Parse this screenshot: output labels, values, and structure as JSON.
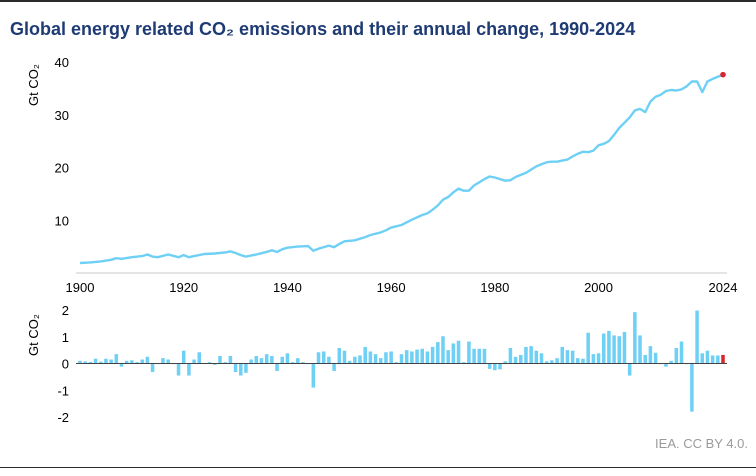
{
  "title": "Global energy related CO₂ emissions and their annual change, 1990-2024",
  "credit": "IEA. CC BY 4.0.",
  "colors": {
    "line": "#6fd0f5",
    "bar": "#6fd0f5",
    "highlight": "#d9262c",
    "title": "#1f3b74"
  },
  "chart_data": [
    {
      "type": "line",
      "ylabel": "Gt CO₂",
      "xlim": [
        1900,
        2024
      ],
      "ylim": [
        0,
        40
      ],
      "x_ticks": [
        1900,
        1920,
        1940,
        1960,
        1980,
        2000,
        2024
      ],
      "y_ticks": [
        10,
        20,
        30,
        40
      ],
      "grid": false,
      "points": [
        [
          1900,
          1.9
        ],
        [
          1902,
          2.0
        ],
        [
          1904,
          2.2
        ],
        [
          1906,
          2.5
        ],
        [
          1907,
          2.8
        ],
        [
          1908,
          2.7
        ],
        [
          1910,
          3.0
        ],
        [
          1912,
          3.2
        ],
        [
          1913,
          3.5
        ],
        [
          1914,
          3.1
        ],
        [
          1915,
          3.0
        ],
        [
          1917,
          3.5
        ],
        [
          1919,
          3.0
        ],
        [
          1920,
          3.4
        ],
        [
          1921,
          3.0
        ],
        [
          1922,
          3.2
        ],
        [
          1924,
          3.6
        ],
        [
          1926,
          3.7
        ],
        [
          1928,
          3.9
        ],
        [
          1929,
          4.1
        ],
        [
          1930,
          3.8
        ],
        [
          1931,
          3.4
        ],
        [
          1932,
          3.1
        ],
        [
          1934,
          3.5
        ],
        [
          1936,
          4.0
        ],
        [
          1937,
          4.3
        ],
        [
          1938,
          4.0
        ],
        [
          1939,
          4.5
        ],
        [
          1940,
          4.8
        ],
        [
          1942,
          5.0
        ],
        [
          1944,
          5.1
        ],
        [
          1945,
          4.2
        ],
        [
          1946,
          4.6
        ],
        [
          1948,
          5.2
        ],
        [
          1949,
          4.9
        ],
        [
          1950,
          5.5
        ],
        [
          1951,
          6.0
        ],
        [
          1953,
          6.2
        ],
        [
          1955,
          6.8
        ],
        [
          1956,
          7.2
        ],
        [
          1958,
          7.7
        ],
        [
          1959,
          8.1
        ],
        [
          1960,
          8.6
        ],
        [
          1962,
          9.1
        ],
        [
          1964,
          10.1
        ],
        [
          1966,
          11.0
        ],
        [
          1967,
          11.3
        ],
        [
          1968,
          12.0
        ],
        [
          1969,
          12.8
        ],
        [
          1970,
          13.9
        ],
        [
          1971,
          14.4
        ],
        [
          1972,
          15.3
        ],
        [
          1973,
          16.0
        ],
        [
          1974,
          15.6
        ],
        [
          1975,
          15.6
        ],
        [
          1976,
          16.6
        ],
        [
          1977,
          17.2
        ],
        [
          1978,
          17.8
        ],
        [
          1979,
          18.3
        ],
        [
          1980,
          18.1
        ],
        [
          1981,
          17.8
        ],
        [
          1982,
          17.5
        ],
        [
          1983,
          17.6
        ],
        [
          1984,
          18.2
        ],
        [
          1985,
          18.6
        ],
        [
          1986,
          19.0
        ],
        [
          1987,
          19.6
        ],
        [
          1988,
          20.2
        ],
        [
          1989,
          20.6
        ],
        [
          1990,
          21.0
        ],
        [
          1991,
          21.1
        ],
        [
          1992,
          21.1
        ],
        [
          1993,
          21.3
        ],
        [
          1994,
          21.5
        ],
        [
          1995,
          22.1
        ],
        [
          1996,
          22.6
        ],
        [
          1997,
          23.0
        ],
        [
          1998,
          22.9
        ],
        [
          1999,
          23.2
        ],
        [
          2000,
          24.2
        ],
        [
          2001,
          24.5
        ],
        [
          2002,
          25.0
        ],
        [
          2003,
          26.2
        ],
        [
          2004,
          27.5
        ],
        [
          2005,
          28.5
        ],
        [
          2006,
          29.5
        ],
        [
          2007,
          30.8
        ],
        [
          2008,
          31.1
        ],
        [
          2009,
          30.5
        ],
        [
          2010,
          32.5
        ],
        [
          2011,
          33.4
        ],
        [
          2012,
          33.8
        ],
        [
          2013,
          34.5
        ],
        [
          2014,
          34.7
        ],
        [
          2015,
          34.6
        ],
        [
          2016,
          34.8
        ],
        [
          2017,
          35.4
        ],
        [
          2018,
          36.3
        ],
        [
          2019,
          36.3
        ],
        [
          2020,
          34.3
        ],
        [
          2021,
          36.3
        ],
        [
          2022,
          36.8
        ],
        [
          2023,
          37.2
        ],
        [
          2024,
          37.6
        ]
      ],
      "highlight": [
        2024,
        37.6
      ]
    },
    {
      "type": "bar",
      "ylabel": "Gt CO₂",
      "xlim": [
        1900,
        2024
      ],
      "ylim": [
        -2,
        2
      ],
      "y_ticks": [
        2,
        1,
        0,
        -1,
        -2
      ],
      "grid": false,
      "start_year": 1900,
      "values": [
        0.1,
        0.08,
        0.06,
        0.18,
        0.07,
        0.18,
        0.15,
        0.35,
        -0.12,
        0.1,
        0.12,
        0.05,
        0.15,
        0.25,
        -0.32,
        -0.02,
        0.2,
        0.15,
        0.0,
        -0.45,
        0.48,
        -0.45,
        0.15,
        0.42,
        0.02,
        0.05,
        -0.05,
        0.28,
        0.05,
        0.28,
        -0.32,
        -0.45,
        -0.35,
        0.15,
        0.28,
        0.2,
        0.35,
        0.28,
        -0.28,
        0.25,
        0.38,
        0.05,
        0.2,
        0.05,
        0.0,
        -0.9,
        0.42,
        0.45,
        0.25,
        -0.28,
        0.58,
        0.48,
        0.1,
        0.25,
        0.3,
        0.62,
        0.45,
        0.35,
        0.2,
        0.42,
        0.45,
        0.05,
        0.35,
        0.5,
        0.45,
        0.52,
        0.55,
        0.45,
        0.62,
        0.8,
        1.02,
        0.5,
        0.75,
        0.85,
        0.05,
        0.82,
        0.55,
        0.55,
        0.55,
        -0.2,
        -0.25,
        -0.22,
        0.08,
        0.58,
        0.25,
        0.32,
        0.62,
        0.65,
        0.48,
        0.38,
        0.08,
        0.12,
        0.2,
        0.62,
        0.5,
        0.48,
        0.2,
        0.18,
        1.15,
        0.35,
        0.38,
        1.12,
        1.22,
        1.05,
        1.02,
        1.18,
        -0.45,
        1.92,
        1.05,
        0.32,
        0.65,
        0.4,
        -0.02,
        -0.12,
        0.1,
        0.58,
        0.82,
        0.0,
        -1.8,
        1.98,
        0.38,
        0.48,
        0.3,
        0.3,
        0.32
      ],
      "highlight_last": true
    }
  ]
}
